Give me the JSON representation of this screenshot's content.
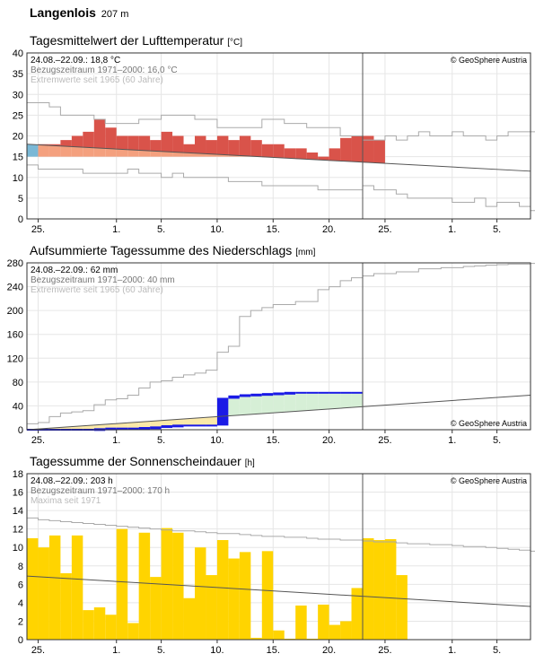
{
  "station": {
    "name": "Langenlois",
    "elevation": "207 m"
  },
  "copyright": "© GeoSphere Austria",
  "x_ticks": [
    {
      "day": 1,
      "label": "25."
    },
    {
      "day": 8,
      "label": "1."
    },
    {
      "day": 12,
      "label": "5."
    },
    {
      "day": 17,
      "label": "10."
    },
    {
      "day": 22,
      "label": "15."
    },
    {
      "day": 27,
      "label": "20."
    },
    {
      "day": 32,
      "label": "25."
    },
    {
      "day": 38,
      "label": "1."
    },
    {
      "day": 42,
      "label": "5."
    }
  ],
  "chart_data": [
    {
      "type": "area",
      "title": "Tagesmittelwert der Lufttemperatur",
      "unit": "[°C]",
      "legend": {
        "current": "24.08.–22.09.: 18,8 °C",
        "normal": "Bezugszeitraum 1971–2000: 16,0 °C",
        "extremes": "Extremwerte seit 1965 (60 Jahre)"
      },
      "ylim": [
        0,
        40
      ],
      "yticks": [
        0,
        5,
        10,
        15,
        20,
        25,
        30,
        35,
        40
      ],
      "today_day": 30,
      "colors": {
        "above": "#d9534a",
        "below": "#7ab8d6",
        "base": "#f4a07e",
        "normal": "#555555",
        "extremes": "#aaaaaa"
      },
      "actual": [
        15,
        18,
        18,
        19,
        20,
        21,
        24,
        22,
        20,
        20,
        20,
        19,
        21,
        20,
        18,
        20,
        19,
        20,
        19,
        20,
        19,
        18,
        18,
        17,
        17,
        16,
        15,
        17,
        19.5,
        20,
        20,
        19
      ],
      "normal_line": {
        "days": [
          0,
          45
        ],
        "values": [
          18,
          11.5
        ]
      },
      "max_line": [
        28,
        28,
        27,
        25,
        25,
        25,
        24,
        23,
        23,
        23,
        24,
        24,
        25,
        25,
        25,
        24,
        24,
        22,
        22,
        22,
        22,
        24,
        24,
        23,
        23,
        22,
        22,
        22,
        20,
        20,
        19,
        19,
        20,
        19,
        20,
        21,
        20,
        20,
        21,
        20,
        20,
        19,
        20,
        21,
        21,
        21
      ],
      "min_line": [
        13,
        12,
        12,
        12,
        12,
        11,
        11,
        11,
        11,
        12,
        11,
        11,
        10,
        11,
        10,
        10,
        10,
        10,
        9,
        9,
        9,
        8,
        8,
        8,
        8,
        8,
        7,
        7,
        7,
        7,
        8,
        7,
        7,
        6,
        5,
        5,
        5,
        5,
        4,
        4,
        5,
        3,
        4,
        4,
        3,
        2
      ]
    },
    {
      "type": "area",
      "title": "Aufsummierte Tagessumme des Niederschlags",
      "unit": "[mm]",
      "legend": {
        "current": "24.08.–22.09.: 62 mm",
        "normal": "Bezugszeitraum 1971–2000: 40 mm",
        "extremes": "Extremwerte seit 1965 (60 Jahre)"
      },
      "ylim": [
        0,
        280
      ],
      "yticks": [
        0,
        40,
        80,
        120,
        160,
        200,
        240,
        280
      ],
      "today_day": 30,
      "colors": {
        "actual": "#1a1ae6",
        "surplus": "#d6efd6",
        "deficit": "#fbe9a8",
        "normal": "#555555",
        "extremes": "#aaaaaa"
      },
      "actual_cum": [
        0,
        0,
        0,
        0,
        0,
        0,
        1,
        2,
        2,
        2,
        3,
        4,
        6,
        7,
        7,
        7,
        7,
        52,
        56,
        58,
        59,
        60,
        61,
        62,
        62,
        62,
        62,
        62,
        62,
        62
      ],
      "normal_line": {
        "days": [
          0,
          45
        ],
        "values": [
          0,
          58
        ]
      },
      "max_line": [
        10,
        12,
        22,
        28,
        30,
        32,
        42,
        50,
        52,
        58,
        70,
        80,
        82,
        88,
        92,
        95,
        100,
        130,
        140,
        190,
        200,
        205,
        210,
        210,
        215,
        215,
        235,
        240,
        250,
        255,
        258,
        262,
        262,
        265,
        265,
        270,
        270,
        272,
        272,
        274,
        275,
        276,
        277,
        278,
        278,
        279
      ]
    },
    {
      "type": "bar",
      "title": "Tagessumme der Sonnenscheindauer",
      "unit": "[h]",
      "legend": {
        "current": "24.08.–22.09.: 203 h",
        "normal": "Bezugszeitraum 1971–2000: 170 h",
        "extremes": "Maxima seit 1971"
      },
      "ylim": [
        0,
        18
      ],
      "yticks": [
        0,
        2,
        4,
        6,
        8,
        10,
        12,
        14,
        16,
        18
      ],
      "today_day": 30,
      "colors": {
        "bars": "#ffd400",
        "normal": "#555555",
        "extremes": "#aaaaaa"
      },
      "values": [
        11,
        10,
        11.3,
        7.2,
        11.3,
        3.2,
        3.5,
        2.7,
        12,
        1.8,
        11.6,
        6.8,
        12.1,
        11.6,
        4.5,
        10,
        7,
        10.8,
        8.8,
        9.5,
        0.2,
        9.6,
        1,
        0.1,
        3.7,
        0.1,
        3.8,
        1.6,
        2,
        5.6,
        11,
        10.8,
        10.9,
        7
      ],
      "normal_line": {
        "days": [
          0,
          45
        ],
        "values": [
          6.9,
          3.6
        ]
      },
      "max_line": [
        13.2,
        13,
        12.9,
        12.8,
        12.7,
        12.6,
        12.5,
        12.4,
        12.3,
        12.2,
        12.1,
        12,
        11.9,
        11.8,
        11.8,
        11.7,
        11.6,
        11.5,
        11.5,
        11.4,
        11.3,
        11.2,
        11.2,
        11.1,
        11.1,
        11,
        10.9,
        10.9,
        10.8,
        10.8,
        10.7,
        10.6,
        10.6,
        10.5,
        10.4,
        10.4,
        10.3,
        10.3,
        10.2,
        10.1,
        10.1,
        10,
        9.9,
        9.8,
        9.7,
        9.6
      ]
    }
  ]
}
